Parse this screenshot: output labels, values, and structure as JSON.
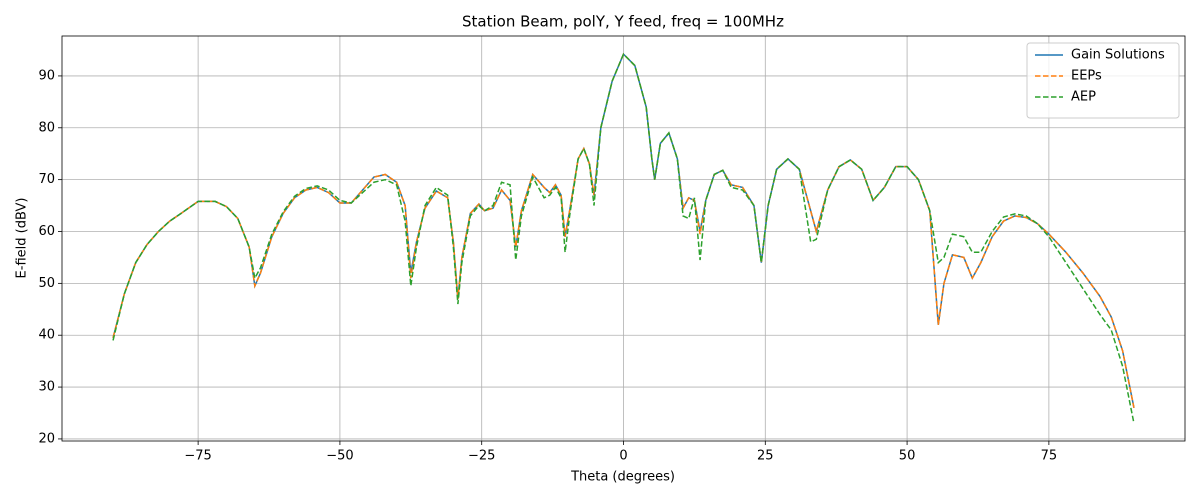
{
  "chart_data": {
    "type": "line",
    "title": "Station Beam, polY, Y feed, freq = 100MHz",
    "x_label": "Theta (degrees)",
    "y_label": "E-field (dBV)",
    "x": [
      -90,
      -88,
      -86,
      -84,
      -82,
      -80,
      -78,
      -75,
      -72,
      -70,
      -68,
      -66,
      -65,
      -64,
      -62,
      -60,
      -58,
      -56,
      -54,
      -52,
      -50,
      -48,
      -46,
      -44,
      -42,
      -40,
      -38.5,
      -37.5,
      -36.5,
      -35,
      -33,
      -31,
      -30,
      -29.2,
      -28.5,
      -27,
      -25.5,
      -24.5,
      -23,
      -21.5,
      -20,
      -19,
      -18,
      -16,
      -14,
      -13,
      -12,
      -11,
      -10.3,
      -9.5,
      -8,
      -7,
      -6,
      -5.2,
      -4,
      -2,
      0,
      2,
      4,
      5,
      5.5,
      6.5,
      8,
      9.5,
      10.5,
      11.5,
      12.5,
      13.5,
      14.5,
      16,
      17.5,
      19,
      21,
      23,
      24.3,
      25.5,
      27,
      29,
      31,
      33,
      34,
      36,
      38,
      40,
      42,
      44,
      46,
      48,
      50,
      52,
      54,
      55.5,
      56.5,
      58,
      60,
      61.5,
      63,
      65,
      67,
      69,
      71,
      73,
      75,
      78,
      81,
      84,
      86,
      88,
      90
    ],
    "series": [
      {
        "name": "Gain Solutions",
        "color": "#1f77b4",
        "linestyle": "solid",
        "values": [
          39.5,
          48,
          54,
          57.5,
          60,
          62,
          63.5,
          65.8,
          65.8,
          64.8,
          62.5,
          57,
          49.5,
          52,
          59,
          63.5,
          66.5,
          68,
          68.5,
          67.5,
          65.5,
          65.5,
          68,
          70.5,
          71,
          69.5,
          65,
          52,
          58,
          64.5,
          67.8,
          66.5,
          58,
          47,
          55,
          63.5,
          65.3,
          64,
          64.5,
          68,
          66,
          57,
          64,
          71,
          68.5,
          67.5,
          69,
          67,
          59,
          64,
          74,
          76,
          73,
          67,
          80,
          89,
          94.2,
          92,
          84,
          74,
          70,
          77,
          79,
          74,
          64.5,
          66.5,
          66,
          60,
          66,
          71,
          71.8,
          69,
          68.5,
          65,
          54,
          65,
          72,
          74,
          72,
          64,
          60,
          68,
          72.5,
          73.8,
          72,
          66,
          68.5,
          72.5,
          72.5,
          70,
          64,
          42,
          50,
          55.5,
          55,
          51,
          54,
          59,
          62,
          63,
          62.7,
          61.5,
          59.5,
          56,
          52,
          47.5,
          43.5,
          37,
          26
        ]
      },
      {
        "name": "EEPs",
        "color": "#ff7f0e",
        "linestyle": "dashed",
        "values": [
          39.5,
          48,
          54,
          57.5,
          60,
          62,
          63.5,
          65.8,
          65.8,
          64.8,
          62.5,
          57,
          49.5,
          52,
          59,
          63.5,
          66.5,
          68,
          68.5,
          67.5,
          65.5,
          65.5,
          68,
          70.5,
          71,
          69.5,
          65,
          51,
          58,
          64.5,
          67.8,
          66.5,
          58,
          47,
          55,
          63.5,
          65.3,
          64,
          64.5,
          68,
          66,
          57,
          64,
          71,
          68.5,
          67.5,
          69,
          67,
          59,
          64,
          74,
          76,
          73,
          67,
          80,
          89,
          94.2,
          92,
          84,
          74,
          70,
          77,
          79,
          74,
          64.5,
          66.5,
          66,
          59.5,
          66,
          71,
          71.8,
          69,
          68.5,
          65,
          54,
          65,
          72,
          74,
          72,
          64,
          60,
          68,
          72.5,
          73.8,
          72,
          66,
          68.5,
          72.5,
          72.5,
          70,
          64,
          42,
          50,
          55.5,
          55,
          51,
          54,
          59,
          62,
          63,
          62.7,
          61.5,
          59.5,
          56,
          52,
          47.5,
          43.5,
          37,
          26
        ]
      },
      {
        "name": "AEP",
        "color": "#2ca02c",
        "linestyle": "dashed",
        "values": [
          39,
          48,
          54,
          57.5,
          60,
          62,
          63.5,
          65.8,
          65.8,
          64.8,
          62.5,
          57,
          51,
          53,
          59.5,
          63.8,
          66.8,
          68.3,
          68.8,
          68,
          66,
          65.5,
          67.5,
          69.5,
          70,
          69,
          62,
          49.5,
          57,
          65,
          68.5,
          67,
          57,
          46,
          54,
          63,
          65,
          64,
          65,
          69.5,
          69,
          54.5,
          63,
          70.5,
          66.5,
          67,
          68.5,
          66.5,
          56,
          63,
          74,
          76,
          73,
          65,
          80,
          89,
          94.2,
          92,
          84,
          74,
          70,
          77,
          79,
          74,
          63,
          62.5,
          66.5,
          54.5,
          66,
          71,
          71.8,
          68.5,
          68,
          65,
          54,
          65,
          72,
          74,
          72,
          58,
          58.5,
          68,
          72.5,
          73.8,
          72,
          66,
          68.5,
          72.5,
          72.5,
          70,
          64,
          54,
          55,
          59.5,
          59,
          56,
          56,
          60,
          62.8,
          63.4,
          63,
          61.5,
          59,
          54,
          49,
          44,
          41,
          34,
          23
        ]
      }
    ],
    "xlim": [
      -99,
      99
    ],
    "ylim": [
      19.6,
      97.7
    ],
    "xticks": [
      {
        "value": -75,
        "label": "−75"
      },
      {
        "value": -50,
        "label": "−50"
      },
      {
        "value": -25,
        "label": "−25"
      },
      0,
      25,
      50,
      75
    ],
    "yticks": [
      20,
      30,
      40,
      50,
      60,
      70,
      80,
      90
    ],
    "grid": true,
    "legend": "upper right"
  }
}
